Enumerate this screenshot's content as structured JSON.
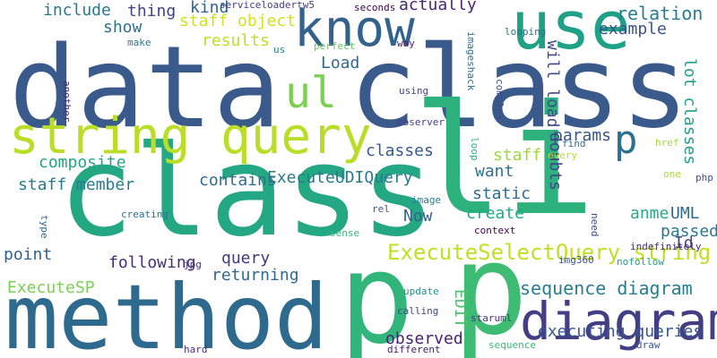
{
  "words": [
    {
      "text": "data class",
      "color": "#3b5a8c"
    },
    {
      "text": "class",
      "color": "#24a884"
    },
    {
      "text": "method",
      "color": "#2e6a8e"
    },
    {
      "text": "string query",
      "color": "#bade28"
    },
    {
      "text": "li",
      "color": "#2db27d"
    },
    {
      "text": "p",
      "color": "#31b57b"
    },
    {
      "text": "p",
      "color": "#3fbc73"
    },
    {
      "text": "use",
      "color": "#1fa187"
    },
    {
      "text": "know",
      "color": "#33638d"
    },
    {
      "text": "ul",
      "color": "#7ad151"
    },
    {
      "text": "diagram",
      "color": "#433e85"
    },
    {
      "text": "p",
      "color": "#2c728e"
    },
    {
      "text": "ExecuteSelectQuery string",
      "color": "#c2df23"
    },
    {
      "text": "sequence diagram",
      "color": "#287d8e"
    },
    {
      "text": "relation",
      "color": "#277f8e"
    },
    {
      "text": "include",
      "color": "#2a788e"
    },
    {
      "text": "thing",
      "color": "#404387"
    },
    {
      "text": "kind",
      "color": "#33638d"
    },
    {
      "text": "staff object",
      "color": "#d2e21b"
    },
    {
      "text": "actually",
      "color": "#482576"
    },
    {
      "text": "show",
      "color": "#2c718e"
    },
    {
      "text": "results",
      "color": "#bddf26"
    },
    {
      "text": "example",
      "color": "#3b528b"
    },
    {
      "text": "Load",
      "color": "#30698e"
    },
    {
      "text": "will load",
      "color": "#3e4989"
    },
    {
      "text": "lot classes",
      "color": "#1f9e89"
    },
    {
      "text": "classes",
      "color": "#365c8d"
    },
    {
      "text": "params",
      "color": "#39568c"
    },
    {
      "text": "composite",
      "color": "#22a785"
    },
    {
      "text": "staff",
      "color": "#9dd93b"
    },
    {
      "text": "want",
      "color": "#2c728e"
    },
    {
      "text": "ExecuteUDIQuery",
      "color": "#2a788e"
    },
    {
      "text": "staff member",
      "color": "#287c8e"
    },
    {
      "text": "contains",
      "color": "#2f6c8e"
    },
    {
      "text": "static",
      "color": "#2e6d8e"
    },
    {
      "text": "create",
      "color": "#23a983"
    },
    {
      "text": "doubts",
      "color": "#414487"
    },
    {
      "text": "anme",
      "color": "#25ac82"
    },
    {
      "text": "UML",
      "color": "#31688e"
    },
    {
      "text": "passed",
      "color": "#2a788e"
    },
    {
      "text": "Now",
      "color": "#34618d"
    },
    {
      "text": "Id",
      "color": "#404688"
    },
    {
      "text": "point",
      "color": "#33628d"
    },
    {
      "text": "query",
      "color": "#453882"
    },
    {
      "text": "following",
      "color": "#472c7a"
    },
    {
      "text": "returning",
      "color": "#31688e"
    },
    {
      "text": "ExecuteSP",
      "color": "#7ad151"
    },
    {
      "text": "EDIT",
      "color": "#4ec36b"
    },
    {
      "text": "observed",
      "color": "#482173"
    },
    {
      "text": "executing queries",
      "color": "#39558c"
    },
    {
      "text": "serviceloadertw5",
      "color": "#443983"
    },
    {
      "text": "seconds",
      "color": "#440154"
    },
    {
      "text": "perfect",
      "color": "#5ec962"
    },
    {
      "text": "make",
      "color": "#2a778e"
    },
    {
      "text": "us",
      "color": "#228c8d"
    },
    {
      "text": "way",
      "color": "#481f70"
    },
    {
      "text": "imageshack",
      "color": "#2c718e"
    },
    {
      "text": "looping",
      "color": "#2d708e"
    },
    {
      "text": "using",
      "color": "#414487"
    },
    {
      "text": "complex",
      "color": "#3e4c8a"
    },
    {
      "text": "another",
      "color": "#482878"
    },
    {
      "text": "observer",
      "color": "#424086"
    },
    {
      "text": "find",
      "color": "#2d718e"
    },
    {
      "text": "every",
      "color": "#b5de2b"
    },
    {
      "text": "loop",
      "color": "#2ab07f"
    },
    {
      "text": "href",
      "color": "#a0da39"
    },
    {
      "text": "one",
      "color": "#a8db34"
    },
    {
      "text": "php",
      "color": "#3a548c"
    },
    {
      "text": "need",
      "color": "#3d4e8a"
    },
    {
      "text": "image",
      "color": "#297b8e"
    },
    {
      "text": "rel",
      "color": "#3c508b"
    },
    {
      "text": "creating",
      "color": "#2b748e"
    },
    {
      "text": "type",
      "color": "#306a8e"
    },
    {
      "text": "sense",
      "color": "#35b779"
    },
    {
      "text": "context",
      "color": "#440154"
    },
    {
      "text": "indefinitely",
      "color": "#472a7a"
    },
    {
      "text": "img360",
      "color": "#3b518b"
    },
    {
      "text": "nofollow",
      "color": "#1fa188"
    },
    {
      "text": "jpg",
      "color": "#46307e"
    },
    {
      "text": "update",
      "color": "#21918c"
    },
    {
      "text": "calling",
      "color": "#3e4989"
    },
    {
      "text": "staruml",
      "color": "#453581"
    },
    {
      "text": "draw",
      "color": "#38588c"
    },
    {
      "text": "hard",
      "color": "#46307e"
    },
    {
      "text": "different",
      "color": "#481a6c"
    },
    {
      "text": "sequence",
      "color": "#3bbb75"
    }
  ]
}
